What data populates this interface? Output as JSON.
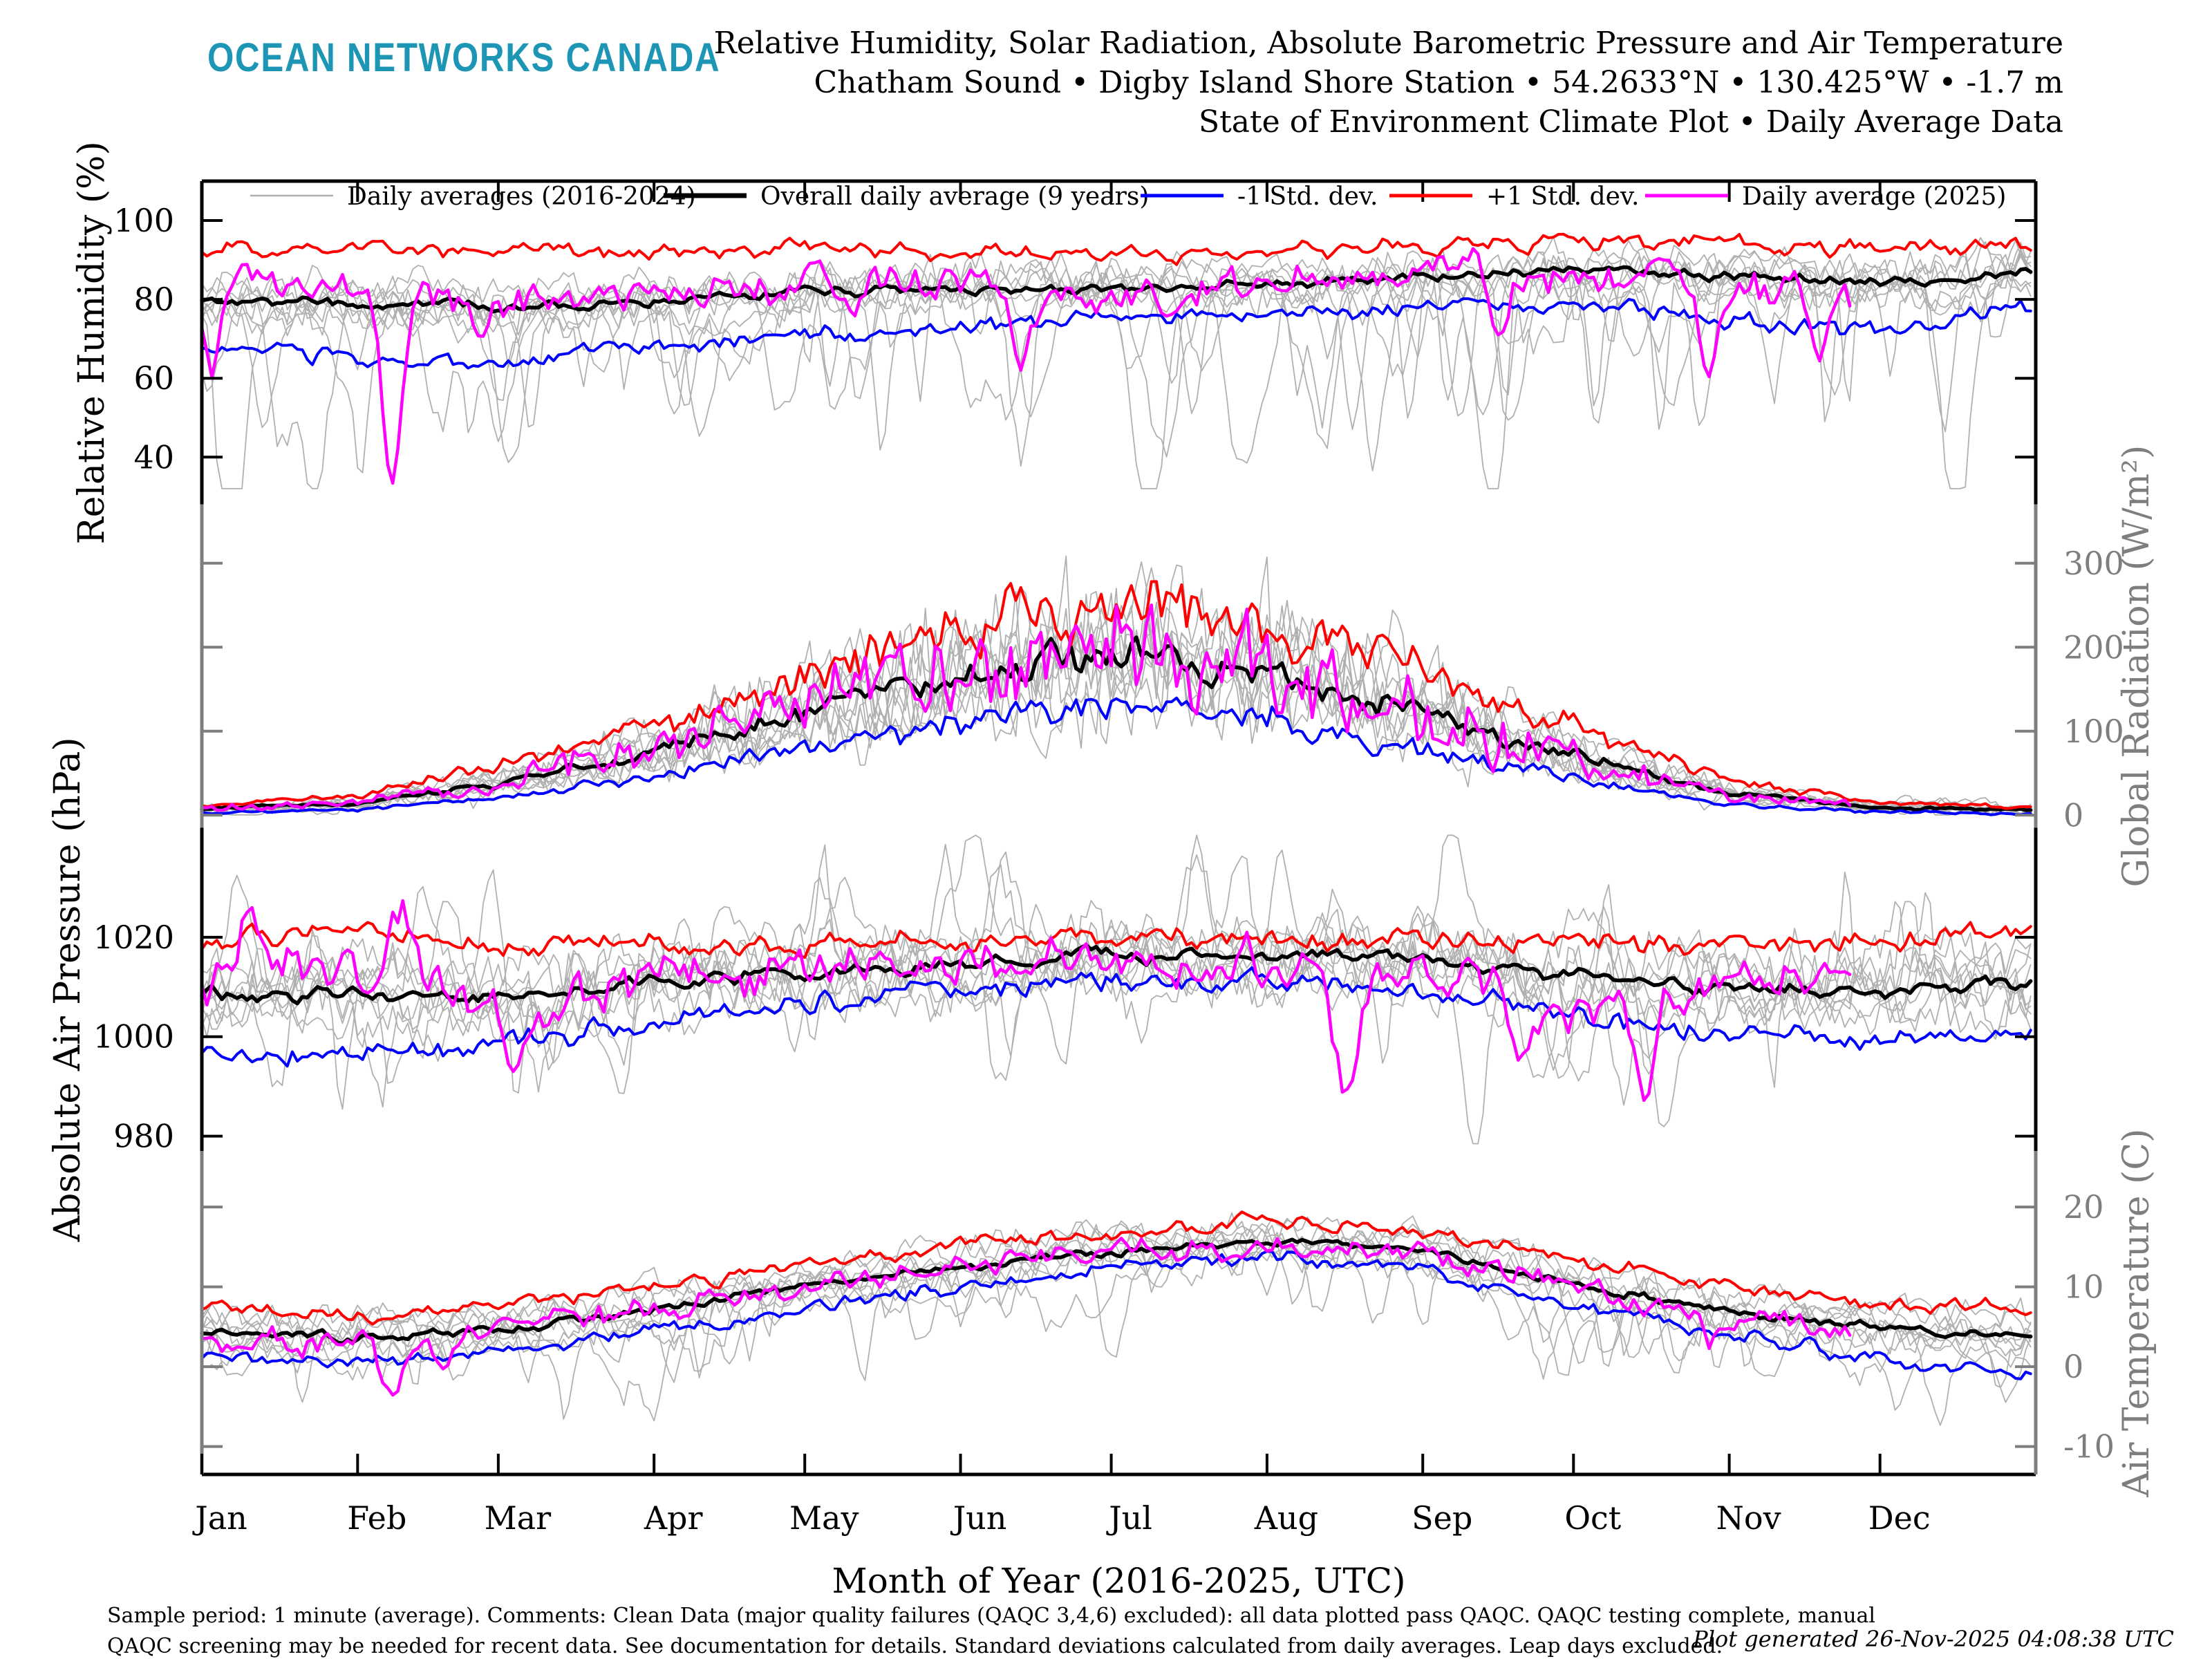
{
  "header": {
    "brand": "OCEAN NETWORKS CANADA",
    "title_line1": "Relative Humidity, Solar Radiation, Absolute Barometric Pressure and Air Temperature",
    "title_line2": "Chatham Sound • Digby Island Shore Station • 54.2633°N • 130.425°W • -1.7 m",
    "title_line3": "State of Environment Climate Plot • Daily Average Data"
  },
  "footer": {
    "line1": "Sample period: 1 minute (average). Comments: Clean Data (major quality failures (QAQC 3,4,6) excluded): all data plotted pass QAQC. QAQC testing complete, manual",
    "line2": "QAQC screening may be needed for recent data. See documentation for details. Standard deviations calculated from daily averages. Leap days excluded.",
    "generated": "Plot generated 26-Nov-2025 04:08:38 UTC"
  },
  "colors": {
    "brand": "#1D95B5",
    "black": "#000000",
    "gray_line": "#B0B0B0",
    "axis_gray": "#7E7E7E",
    "blue": "#0000FF",
    "red": "#FF0000",
    "magenta": "#FF00FF"
  },
  "legend": {
    "items": [
      {
        "label": "Daily averages (2016-2024)",
        "color_key": "gray_line",
        "sample_width": 2.5
      },
      {
        "label": "Overall daily average (9 years)",
        "color_key": "black",
        "sample_width": 7
      },
      {
        "label": "-1 Std. dev.",
        "color_key": "blue",
        "sample_width": 5
      },
      {
        "label": "+1 Std. dev.",
        "color_key": "red",
        "sample_width": 5
      },
      {
        "label": "Daily average (2025)",
        "color_key": "magenta",
        "sample_width": 5
      }
    ]
  },
  "chart_data": {
    "type": "line",
    "xlabel": "Month of Year (2016-2025, UTC)",
    "months": [
      "Jan",
      "Feb",
      "Mar",
      "Apr",
      "May",
      "Jun",
      "Jul",
      "Aug",
      "Sep",
      "Oct",
      "Nov",
      "Dec"
    ],
    "month_start_days": [
      0,
      31,
      59,
      90,
      120,
      151,
      181,
      212,
      243,
      273,
      304,
      334
    ],
    "days_in_year": 365,
    "series_2025_end_day": 329,
    "gray_years_count": 9,
    "panels": [
      {
        "id": "rh",
        "ylabel": "Relative Humidity (%)",
        "label_side": "left",
        "label_color_key": "black",
        "ticks": [
          40,
          60,
          80,
          100
        ],
        "range": [
          28,
          110
        ],
        "rel": false,
        "rel_ref": 1,
        "noise": {
          "mean": 1.7,
          "sd": 2.3,
          "y2025": 5.0,
          "gray": 5.5,
          "bias": 0.9,
          "smooth": 0.5
        },
        "gray_events": 12,
        "event_depth": [
          10,
          40
        ],
        "event_sign": -1,
        "clamp": [
          32,
          103
        ],
        "clamp_cap": 99.5,
        "seed": 101,
        "series": {
          "mean": [
            80,
            79,
            78,
            80,
            82,
            83,
            83,
            84,
            86,
            87,
            86,
            84,
            87
          ],
          "plus": [
            92,
            93,
            92,
            92,
            93,
            92,
            91.5,
            92,
            94,
            95,
            94,
            92.5,
            94
          ],
          "minus": [
            68,
            64,
            64,
            68,
            71,
            73,
            75,
            76,
            78,
            79,
            74,
            72,
            79
          ],
          "y2025": [
            84,
            84,
            80,
            82,
            84,
            85,
            80,
            84,
            88,
            87,
            83,
            81,
            81
          ]
        },
        "events_2025": [
          [
            2,
            -22,
            2.5
          ],
          [
            38,
            -48,
            3
          ],
          [
            55,
            -12,
            2
          ],
          [
            130,
            -10,
            2
          ],
          [
            163,
            -20,
            3
          ],
          [
            258,
            -14,
            2.5
          ],
          [
            300,
            -20,
            2.5
          ],
          [
            322,
            -22,
            2
          ]
        ]
      },
      {
        "id": "rad",
        "ylabel": "Global Radiation (W/m²)",
        "label_side": "right",
        "label_color_key": "axis_gray",
        "ticks": [
          0,
          100,
          200,
          300
        ],
        "range": [
          -15,
          370
        ],
        "rel": true,
        "rel_ref": 220,
        "noise": {
          "mean": 30,
          "sd": 34,
          "y2025": 75,
          "gray": 80,
          "bias": 0,
          "smooth": 0.45
        },
        "gray_events": 10,
        "event_depth": [
          30,
          110
        ],
        "event_sign": 0,
        "clamp": [
          0.4,
          345
        ],
        "clamp_cap": 345,
        "seed": 202,
        "series": {
          "mean": [
            7,
            14,
            38,
            75,
            122,
            165,
            192,
            172,
            122,
            72,
            26,
            9,
            6
          ],
          "plus": [
            11,
            23,
            60,
            110,
            168,
            228,
            258,
            232,
            170,
            105,
            42,
            15,
            10
          ],
          "minus": [
            3,
            7,
            20,
            46,
            80,
            108,
            130,
            115,
            78,
            42,
            12,
            4,
            2
          ],
          "y2025": [
            7,
            15,
            40,
            80,
            128,
            168,
            188,
            168,
            118,
            68,
            24,
            8,
            8
          ]
        },
        "events_2025": []
      },
      {
        "id": "pressure",
        "ylabel": "Absolute Air Pressure (hPa)",
        "label_side": "left",
        "label_color_key": "black",
        "ticks": [
          980,
          1000,
          1020
        ],
        "range": [
          977,
          1042
        ],
        "rel": false,
        "rel_ref": 1,
        "noise": {
          "mean": 2.0,
          "sd": 2.6,
          "y2025": 6.0,
          "gray": 7.0,
          "bias": 1.1,
          "smooth": 0.55
        },
        "gray_events": 9,
        "event_depth": [
          8,
          24
        ],
        "event_sign": 0,
        "clamp": [
          978.5,
          1040.5
        ],
        "clamp_cap": 1040.5,
        "seed": 303,
        "series": {
          "mean": [
            1008,
            1009,
            1008,
            1011,
            1013,
            1014,
            1016,
            1016,
            1015,
            1012,
            1010,
            1009,
            1011
          ],
          "plus": [
            1019,
            1021,
            1018,
            1019,
            1019,
            1019,
            1020,
            1020,
            1019,
            1019,
            1018,
            1019,
            1021
          ],
          "minus": [
            996,
            997,
            998,
            1003,
            1007,
            1009,
            1011,
            1011,
            1009,
            1004,
            1001,
            999,
            1001
          ],
          "y2025": [
            1013,
            1014,
            1006,
            1012,
            1014,
            1015,
            1016,
            1014,
            1011,
            1007,
            1013,
            1011,
            1011
          ]
        },
        "events_2025": [
          [
            10,
            12,
            3
          ],
          [
            40,
            13,
            3
          ],
          [
            63,
            -12,
            3
          ],
          [
            228,
            -25,
            3
          ],
          [
            262,
            -13,
            2.5
          ],
          [
            287,
            -20,
            3
          ]
        ]
      },
      {
        "id": "temp",
        "ylabel": "Air Temperature (C)",
        "label_side": "right",
        "label_color_key": "axis_gray",
        "ticks": [
          -10,
          0,
          10,
          20
        ],
        "range": [
          -13.5,
          27
        ],
        "rel": false,
        "rel_ref": 1,
        "noise": {
          "mean": 0.8,
          "sd": 1.2,
          "y2025": 2.0,
          "gray": 2.8,
          "bias": 0.5,
          "smooth": 0.6
        },
        "gray_events": 8,
        "event_depth": [
          3,
          10
        ],
        "event_sign": -1,
        "clamp": [
          -12.5,
          26
        ],
        "clamp_cap": 26,
        "seed": 404,
        "series": {
          "mean": [
            4.5,
            3.5,
            4.5,
            7,
            10,
            12.5,
            14.5,
            15.8,
            14.5,
            10.5,
            7,
            4.8,
            3.8
          ],
          "plus": [
            7.5,
            6.5,
            7.5,
            10,
            13,
            15,
            17,
            18,
            17,
            13.5,
            10,
            8.2,
            7.5
          ],
          "minus": [
            1.5,
            0.5,
            1.8,
            4.2,
            7.5,
            10,
            12.5,
            13.8,
            12,
            7.5,
            4,
            1.2,
            -1
          ],
          "y2025": [
            4,
            2.5,
            5,
            7,
            10,
            12.5,
            14,
            15.5,
            14,
            10,
            6.5,
            4,
            4
          ]
        },
        "events_2025": [
          [
            38,
            -7,
            3
          ],
          [
            48,
            -4,
            2
          ],
          [
            300,
            -3,
            2
          ]
        ]
      }
    ]
  }
}
